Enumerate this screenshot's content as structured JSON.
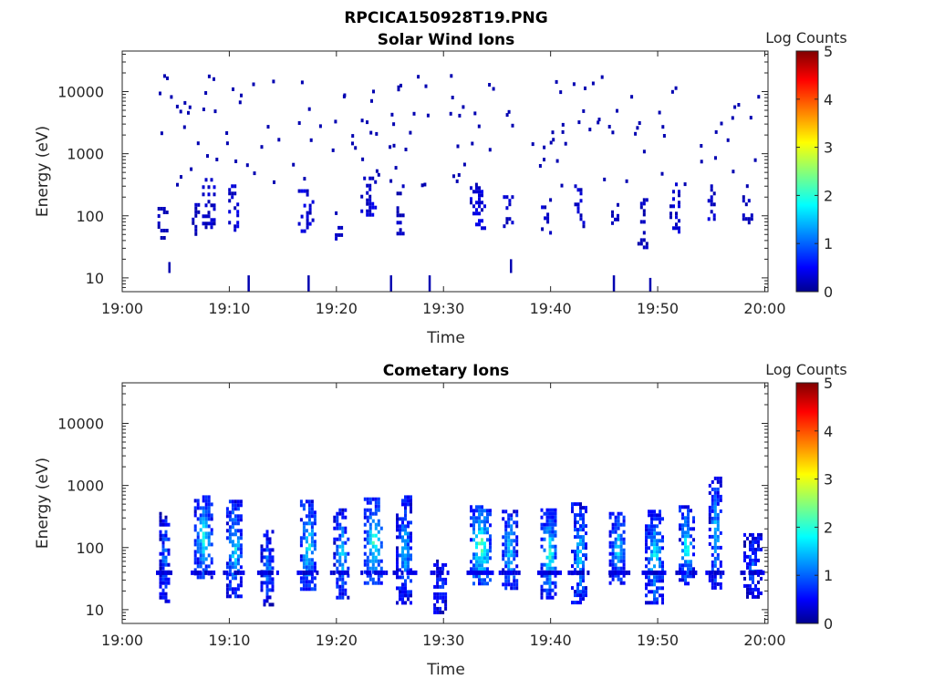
{
  "figure": {
    "filename": "RPCICA150928T19.PNG"
  },
  "colormap": {
    "name": "jet",
    "stops": [
      "#00008f",
      "#0000ff",
      "#00ffff",
      "#ffff00",
      "#ff0000",
      "#800000"
    ]
  },
  "chart_data": [
    {
      "type": "heatmap",
      "title": "Solar Wind Ions",
      "xlabel": "Time",
      "ylabel": "Energy (eV)",
      "y_scale": "log",
      "x_range": [
        "19:00",
        "20:00"
      ],
      "xlim_minutes": [
        0,
        60.3
      ],
      "ylim": [
        6,
        45000
      ],
      "x_ticks": [
        "19:00",
        "19:10",
        "19:20",
        "19:30",
        "19:40",
        "19:50",
        "20:00"
      ],
      "y_ticks": [
        "10",
        "100",
        "1000",
        "10000"
      ],
      "colorbar": {
        "label": "Log Counts",
        "range": [
          0,
          5
        ],
        "ticks": [
          "0",
          "1",
          "2",
          "3",
          "4",
          "5"
        ]
      },
      "bursts": [
        {
          "t": 3.7,
          "w": 0.8,
          "e_lo": 40,
          "e_hi": 130,
          "level": 0.2
        },
        {
          "t": 6.8,
          "w": 0.6,
          "e_lo": 50,
          "e_hi": 150,
          "level": 0.2
        },
        {
          "t": 8.0,
          "w": 1.1,
          "e_lo": 60,
          "e_hi": 380,
          "level": 0.25
        },
        {
          "t": 10.4,
          "w": 1.0,
          "e_lo": 50,
          "e_hi": 300,
          "level": 0.3
        },
        {
          "t": 17.1,
          "w": 1.4,
          "e_lo": 50,
          "e_hi": 250,
          "level": 0.3
        },
        {
          "t": 20.2,
          "w": 0.7,
          "e_lo": 40,
          "e_hi": 110,
          "level": 0.2
        },
        {
          "t": 23.0,
          "w": 1.5,
          "e_lo": 100,
          "e_hi": 400,
          "level": 0.3
        },
        {
          "t": 25.8,
          "w": 0.9,
          "e_lo": 40,
          "e_hi": 300,
          "level": 0.2
        },
        {
          "t": 33.2,
          "w": 1.5,
          "e_lo": 60,
          "e_hi": 280,
          "level": 0.3
        },
        {
          "t": 36.0,
          "w": 0.9,
          "e_lo": 60,
          "e_hi": 200,
          "level": 0.25
        },
        {
          "t": 39.6,
          "w": 1.0,
          "e_lo": 50,
          "e_hi": 180,
          "level": 0.25
        },
        {
          "t": 42.6,
          "w": 0.8,
          "e_lo": 60,
          "e_hi": 300,
          "level": 0.25
        },
        {
          "t": 46.0,
          "w": 0.7,
          "e_lo": 60,
          "e_hi": 150,
          "level": 0.2
        },
        {
          "t": 48.5,
          "w": 0.8,
          "e_lo": 30,
          "e_hi": 180,
          "level": 0.2
        },
        {
          "t": 51.6,
          "w": 1.0,
          "e_lo": 50,
          "e_hi": 320,
          "level": 0.25
        },
        {
          "t": 55.0,
          "w": 0.7,
          "e_lo": 80,
          "e_hi": 300,
          "level": 0.25
        },
        {
          "t": 58.3,
          "w": 0.8,
          "e_lo": 60,
          "e_hi": 200,
          "level": 0.2
        }
      ],
      "scatter_e_range": [
        300,
        18000
      ],
      "low_energy_streaks": [
        {
          "t": 4.3,
          "e_lo": 12,
          "e_hi": 18
        },
        {
          "t": 11.7,
          "e_lo": 6,
          "e_hi": 11
        },
        {
          "t": 17.3,
          "e_lo": 6,
          "e_hi": 11
        },
        {
          "t": 25.0,
          "e_lo": 6,
          "e_hi": 11
        },
        {
          "t": 28.6,
          "e_lo": 6,
          "e_hi": 11
        },
        {
          "t": 36.2,
          "e_lo": 12,
          "e_hi": 20
        },
        {
          "t": 45.8,
          "e_lo": 6,
          "e_hi": 11
        },
        {
          "t": 49.2,
          "e_lo": 6,
          "e_hi": 10
        }
      ]
    },
    {
      "type": "heatmap",
      "title": "Cometary Ions",
      "xlabel": "Time",
      "ylabel": "Energy (eV)",
      "y_scale": "log",
      "x_range": [
        "19:00",
        "20:00"
      ],
      "xlim_minutes": [
        0,
        60.3
      ],
      "ylim": [
        6,
        45000
      ],
      "x_ticks": [
        "19:00",
        "19:10",
        "19:20",
        "19:30",
        "19:40",
        "19:50",
        "20:00"
      ],
      "y_ticks": [
        "10",
        "100",
        "1000",
        "10000"
      ],
      "colorbar": {
        "label": "Log Counts",
        "range": [
          0,
          5
        ],
        "ticks": [
          "0",
          "1",
          "2",
          "3",
          "4",
          "5"
        ]
      },
      "bursts": [
        {
          "t": 3.9,
          "w": 0.9,
          "e_lo": 12,
          "e_hi": 350,
          "level": 1.0
        },
        {
          "t": 7.5,
          "w": 1.6,
          "e_lo": 30,
          "e_hi": 650,
          "level": 1.5
        },
        {
          "t": 10.4,
          "w": 1.4,
          "e_lo": 15,
          "e_hi": 550,
          "level": 1.5
        },
        {
          "t": 13.5,
          "w": 1.2,
          "e_lo": 12,
          "e_hi": 180,
          "level": 1.0
        },
        {
          "t": 17.3,
          "w": 1.4,
          "e_lo": 20,
          "e_hi": 550,
          "level": 1.6
        },
        {
          "t": 20.4,
          "w": 1.4,
          "e_lo": 15,
          "e_hi": 400,
          "level": 1.3
        },
        {
          "t": 23.4,
          "w": 1.7,
          "e_lo": 25,
          "e_hi": 600,
          "level": 1.7
        },
        {
          "t": 26.3,
          "w": 1.5,
          "e_lo": 12,
          "e_hi": 650,
          "level": 1.2
        },
        {
          "t": 29.6,
          "w": 1.1,
          "e_lo": 8,
          "e_hi": 60,
          "level": 0.8
        },
        {
          "t": 33.4,
          "w": 1.9,
          "e_lo": 25,
          "e_hi": 450,
          "level": 2.0
        },
        {
          "t": 36.1,
          "w": 1.3,
          "e_lo": 20,
          "e_hi": 380,
          "level": 1.5
        },
        {
          "t": 39.8,
          "w": 1.5,
          "e_lo": 15,
          "e_hi": 400,
          "level": 1.6
        },
        {
          "t": 42.6,
          "w": 1.4,
          "e_lo": 12,
          "e_hi": 500,
          "level": 1.3
        },
        {
          "t": 46.2,
          "w": 1.5,
          "e_lo": 25,
          "e_hi": 350,
          "level": 1.4
        },
        {
          "t": 49.6,
          "w": 1.6,
          "e_lo": 12,
          "e_hi": 380,
          "level": 1.5
        },
        {
          "t": 52.6,
          "w": 1.3,
          "e_lo": 25,
          "e_hi": 450,
          "level": 1.6
        },
        {
          "t": 55.3,
          "w": 1.1,
          "e_lo": 20,
          "e_hi": 1300,
          "level": 1.3
        },
        {
          "t": 58.8,
          "w": 1.6,
          "e_lo": 15,
          "e_hi": 160,
          "level": 0.9
        }
      ],
      "band_energy": 40
    }
  ]
}
